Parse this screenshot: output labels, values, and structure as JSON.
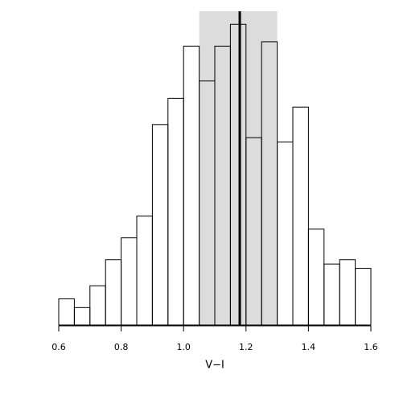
{
  "chart_data": {
    "type": "histogram",
    "x_label": "V−I",
    "bins": [
      0.6,
      0.65,
      0.7,
      0.75,
      0.8,
      0.85,
      0.9,
      0.95,
      1.0,
      1.05,
      1.1,
      1.15,
      1.2,
      1.25,
      1.3,
      1.35,
      1.4,
      1.45,
      1.5,
      1.55,
      1.6
    ],
    "values": [
      6,
      4,
      9,
      15,
      20,
      25,
      46,
      52,
      64,
      56,
      64,
      69,
      43,
      65,
      42,
      50,
      22,
      14,
      15,
      13
    ],
    "color": "#ffffff",
    "shaded_range": [
      1.05,
      1.3
    ],
    "shade_color": "#dcdcdc",
    "vline": 1.18,
    "xlim": [
      0.6,
      1.6
    ],
    "ylim": [
      0,
      72
    ],
    "xticks": [
      0.6,
      0.8,
      {
        "value": 1,
        "label": "1.0"
      },
      1.2,
      1.4,
      1.6
    ]
  }
}
